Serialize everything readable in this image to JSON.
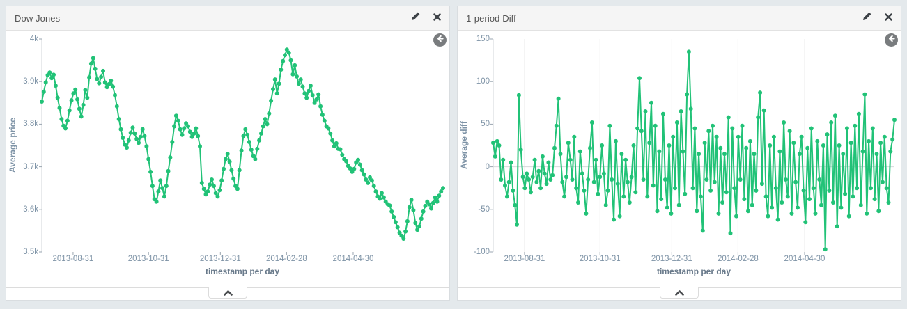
{
  "page": {
    "background": "#e4e9ec",
    "accent_green": "#21c277"
  },
  "panels": [
    {
      "title": "Dow Jones"
    },
    {
      "title": "1-period Diff"
    }
  ],
  "chart_data": [
    {
      "type": "line",
      "title": "Dow Jones",
      "xlabel": "timestamp per day",
      "ylabel": "Average price",
      "ylim": [
        3500,
        4000
      ],
      "y_ticks": [
        {
          "label": "4k",
          "value": 4000
        },
        {
          "label": "3.9k",
          "value": 3900
        },
        {
          "label": "3.8k",
          "value": 3800
        },
        {
          "label": "3.7k",
          "value": 3700
        },
        {
          "label": "3.6k",
          "value": 3600
        },
        {
          "label": "3.5k",
          "value": 3500
        }
      ],
      "x_tick_labels": [
        "2013-08-31",
        "2013-10-31",
        "2013-12-31",
        "2014-02-28",
        "2014-04-30"
      ],
      "x_tick_pos": [
        0.078,
        0.266,
        0.445,
        0.61,
        0.776
      ],
      "zero_line": false,
      "grid_vertical": false,
      "color": "#21c277",
      "values": [
        3853,
        3876,
        3898,
        3915,
        3921,
        3908,
        3916,
        3890,
        3862,
        3838,
        3812,
        3796,
        3790,
        3808,
        3832,
        3856,
        3872,
        3881,
        3858,
        3836,
        3818,
        3845,
        3880,
        3862,
        3910,
        3942,
        3955,
        3930,
        3906,
        3896,
        3911,
        3925,
        3898,
        3887,
        3894,
        3902,
        3888,
        3868,
        3842,
        3812,
        3788,
        3768,
        3752,
        3745,
        3762,
        3780,
        3792,
        3778,
        3765,
        3756,
        3770,
        3788,
        3772,
        3748,
        3718,
        3688,
        3655,
        3624,
        3618,
        3642,
        3668,
        3650,
        3630,
        3655,
        3690,
        3722,
        3758,
        3795,
        3820,
        3808,
        3788,
        3775,
        3790,
        3802,
        3795,
        3782,
        3770,
        3778,
        3790,
        3772,
        3748,
        3662,
        3648,
        3635,
        3642,
        3658,
        3670,
        3655,
        3638,
        3630,
        3645,
        3668,
        3695,
        3718,
        3730,
        3712,
        3692,
        3672,
        3655,
        3648,
        3692,
        3738,
        3772,
        3788,
        3775,
        3758,
        3740,
        3725,
        3718,
        3742,
        3762,
        3778,
        3795,
        3812,
        3800,
        3825,
        3855,
        3882,
        3905,
        3872,
        3895,
        3928,
        3948,
        3962,
        3975,
        3968,
        3950,
        3917,
        3938,
        3912,
        3895,
        3905,
        3888,
        3872,
        3862,
        3878,
        3890,
        3868,
        3850,
        3858,
        3870,
        3842,
        3822,
        3808,
        3795,
        3790,
        3778,
        3762,
        3748,
        3755,
        3742,
        3741,
        3728,
        3718,
        3713,
        3702,
        3696,
        3688,
        3695,
        3710,
        3716,
        3705,
        3692,
        3682,
        3670,
        3662,
        3675,
        3668,
        3655,
        3642,
        3630,
        3625,
        3638,
        3628,
        3618,
        3612,
        3609,
        3595,
        3582,
        3570,
        3558,
        3545,
        3538,
        3531,
        3548,
        3572,
        3605,
        3622,
        3598,
        3568,
        3552,
        3560,
        3578,
        3595,
        3608,
        3618,
        3612,
        3602,
        3615,
        3628,
        3618,
        3632,
        3642,
        3650
      ]
    },
    {
      "type": "line",
      "title": "1-period Diff",
      "xlabel": "timestamp per day",
      "ylabel": "Average diff",
      "ylim": [
        -100,
        150
      ],
      "y_ticks": [
        {
          "label": "150",
          "value": 150
        },
        {
          "label": "100",
          "value": 100
        },
        {
          "label": "50",
          "value": 50
        },
        {
          "label": "0",
          "value": 0
        },
        {
          "label": "-50",
          "value": -50
        },
        {
          "label": "-100",
          "value": -100
        }
      ],
      "x_tick_labels": [
        "2013-08-31",
        "2013-10-31",
        "2013-12-31",
        "2014-02-28",
        "2014-04-30"
      ],
      "x_tick_pos": [
        0.078,
        0.266,
        0.445,
        0.61,
        0.776
      ],
      "zero_line": true,
      "grid_vertical": true,
      "color": "#21c277",
      "values": [
        28,
        12,
        30,
        25,
        -15,
        8,
        -22,
        -35,
        -18,
        5,
        -28,
        -45,
        -68,
        84,
        20,
        -12,
        -25,
        -8,
        -15,
        -30,
        -12,
        8,
        -18,
        -5,
        -25,
        12,
        -8,
        -20,
        5,
        -15,
        -10,
        22,
        48,
        80,
        15,
        -18,
        -35,
        -12,
        28,
        8,
        -15,
        35,
        -25,
        -42,
        18,
        -8,
        -28,
        -55,
        -15,
        22,
        52,
        -18,
        8,
        -32,
        -12,
        25,
        -8,
        -45,
        -28,
        48,
        -15,
        -62,
        30,
        -20,
        -58,
        15,
        -35,
        8,
        -18,
        -42,
        -12,
        25,
        -30,
        45,
        104,
        42,
        -15,
        65,
        -35,
        28,
        75,
        -22,
        48,
        -52,
        18,
        -38,
        62,
        -15,
        -48,
        25,
        -55,
        35,
        -25,
        52,
        -45,
        65,
        18,
        -32,
        85,
        135,
        68,
        -25,
        45,
        -52,
        15,
        -35,
        -75,
        28,
        -15,
        42,
        -28,
        48,
        -18,
        35,
        -55,
        22,
        -42,
        15,
        -30,
        58,
        -78,
        45,
        -25,
        -58,
        35,
        -15,
        48,
        -38,
        22,
        -52,
        30,
        -45,
        15,
        -28,
        58,
        87,
        -20,
        66,
        -35,
        -58,
        25,
        -48,
        35,
        -25,
        -62,
        18,
        -42,
        52,
        -15,
        -35,
        42,
        -55,
        28,
        -18,
        -48,
        15,
        35,
        -28,
        -65,
        22,
        -38,
        45,
        -25,
        -55,
        30,
        -15,
        -45,
        25,
        -97,
        38,
        -28,
        52,
        -42,
        60,
        -70,
        25,
        -48,
        15,
        -32,
        45,
        -58,
        28,
        -35,
        48,
        -25,
        62,
        -45,
        18,
        85,
        -55,
        30,
        -25,
        45,
        -38,
        15,
        -52,
        28,
        -18,
        35,
        -25,
        -42,
        18,
        32,
        55
      ]
    }
  ]
}
